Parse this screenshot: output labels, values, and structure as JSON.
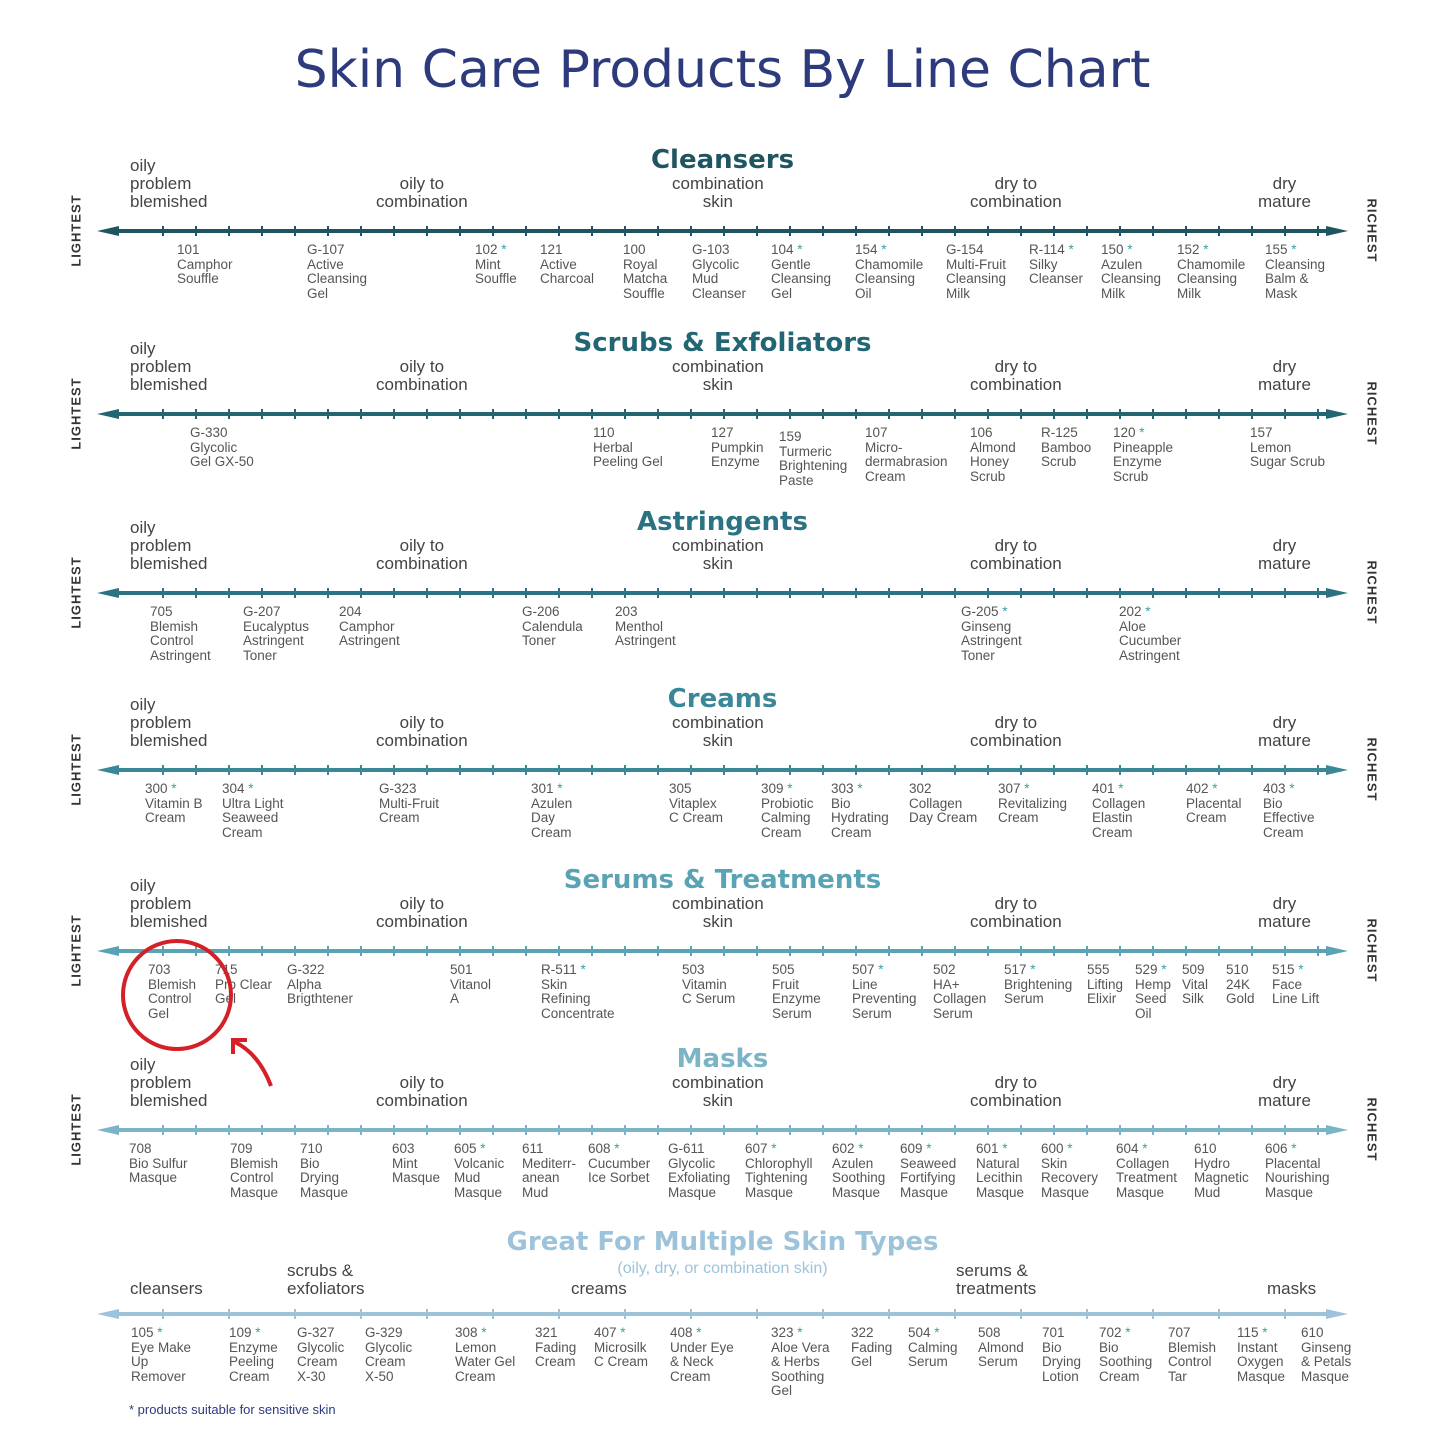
{
  "title": "Skin Care Products By Line Chart",
  "axis_left": "LIGHTEST",
  "axis_right": "RICHEST",
  "skin_labels": {
    "oily": "oily\nproblem\nblemished",
    "oily_combo": "oily to\ncombination",
    "combo": "combination\nskin",
    "dry_combo": "dry to\ncombination",
    "dry": "dry\nmature"
  },
  "sections": [
    {
      "title": "Cleansers",
      "color": "#1f5560",
      "products": [
        {
          "num": "101",
          "star": false,
          "name": "Camphor\nSouffle"
        },
        {
          "num": "G-107",
          "star": false,
          "name": "Active\nCleansing\nGel"
        },
        {
          "num": "102",
          "star": true,
          "name": "Mint\nSouffle"
        },
        {
          "num": "121",
          "star": false,
          "name": "Active\nCharcoal"
        },
        {
          "num": "100",
          "star": false,
          "name": "Royal\nMatcha\nSouffle"
        },
        {
          "num": "G-103",
          "star": false,
          "name": "Glycolic\nMud\nCleanser"
        },
        {
          "num": "104",
          "star": true,
          "name": "Gentle\nCleansing\nGel"
        },
        {
          "num": "154",
          "star": true,
          "name": "Chamomile\nCleansing\nOil"
        },
        {
          "num": "G-154",
          "star": false,
          "name": "Multi-Fruit\nCleansing\nMilk"
        },
        {
          "num": "R-114",
          "star": true,
          "name": "Silky\nCleanser"
        },
        {
          "num": "150",
          "star": true,
          "name": "Azulen\nCleansing\nMilk"
        },
        {
          "num": "152",
          "star": true,
          "name": "Chamomile\nCleansing\nMilk"
        },
        {
          "num": "155",
          "star": true,
          "name": "Cleansing\nBalm &\nMask"
        }
      ]
    },
    {
      "title": "Scrubs & Exfoliators",
      "color": "#236673",
      "products": [
        {
          "num": "G-330",
          "star": false,
          "name": "Glycolic\nGel GX-50"
        },
        {
          "num": "110",
          "star": false,
          "name": "Herbal\nPeeling Gel"
        },
        {
          "num": "127",
          "star": false,
          "name": "Pumpkin\nEnzyme"
        },
        {
          "num": "159",
          "star": false,
          "name": "Turmeric\nBrightening\nPaste"
        },
        {
          "num": "107",
          "star": false,
          "name": "Micro-\ndermabrasion\nCream"
        },
        {
          "num": "106",
          "star": false,
          "name": "Almond\nHoney\nScrub"
        },
        {
          "num": "R-125",
          "star": false,
          "name": "Bamboo\nScrub"
        },
        {
          "num": "120",
          "star": true,
          "name": "Pineapple\nEnzyme\nScrub"
        },
        {
          "num": "157",
          "star": false,
          "name": "Lemon\nSugar Scrub"
        }
      ]
    },
    {
      "title": "Astringents",
      "color": "#2b7383",
      "products": [
        {
          "num": "705",
          "star": false,
          "name": "Blemish\nControl\nAstringent"
        },
        {
          "num": "G-207",
          "star": false,
          "name": "Eucalyptus\nAstringent\nToner"
        },
        {
          "num": "204",
          "star": false,
          "name": "Camphor\nAstringent"
        },
        {
          "num": "G-206",
          "star": false,
          "name": "Calendula\nToner"
        },
        {
          "num": "203",
          "star": false,
          "name": "Menthol\nAstringent"
        },
        {
          "num": "G-205",
          "star": true,
          "name": "Ginseng\nAstringent\nToner"
        },
        {
          "num": "202",
          "star": true,
          "name": "Aloe\nCucumber\nAstringent"
        }
      ]
    },
    {
      "title": "Creams",
      "color": "#3a8797",
      "products": [
        {
          "num": "300",
          "star": true,
          "name": "Vitamin B\nCream"
        },
        {
          "num": "304",
          "star": true,
          "name": "Ultra Light\nSeaweed\nCream"
        },
        {
          "num": "G-323",
          "star": false,
          "name": "Multi-Fruit\nCream"
        },
        {
          "num": "301",
          "star": true,
          "name": "Azulen\nDay\nCream"
        },
        {
          "num": "305",
          "star": false,
          "name": "Vitaplex\nC Cream"
        },
        {
          "num": "309",
          "star": true,
          "name": "Probiotic\nCalming\nCream"
        },
        {
          "num": "303",
          "star": true,
          "name": "Bio\nHydrating\nCream"
        },
        {
          "num": "302",
          "star": false,
          "name": "Collagen\nDay Cream"
        },
        {
          "num": "307",
          "star": true,
          "name": "Revitalizing\nCream"
        },
        {
          "num": "401",
          "star": true,
          "name": "Collagen\nElastin\nCream"
        },
        {
          "num": "402",
          "star": true,
          "name": "Placental\nCream"
        },
        {
          "num": "403",
          "star": true,
          "name": "Bio\nEffective\nCream"
        }
      ]
    },
    {
      "title": "Serums & Treatments",
      "color": "#5aa3b4",
      "products": [
        {
          "num": "703",
          "star": false,
          "name": "Blemish\nControl\nGel"
        },
        {
          "num": "715",
          "star": false,
          "name": "Pro Clear\nGel"
        },
        {
          "num": "G-322",
          "star": false,
          "name": "Alpha\nBrigthtener"
        },
        {
          "num": "501",
          "star": false,
          "name": "Vitanol\nA"
        },
        {
          "num": "R-511",
          "star": true,
          "name": "Skin\nRefining\nConcentrate"
        },
        {
          "num": "503",
          "star": false,
          "name": "Vitamin\nC Serum"
        },
        {
          "num": "505",
          "star": false,
          "name": "Fruit\nEnzyme\nSerum"
        },
        {
          "num": "507",
          "star": true,
          "name": "Line\nPreventing\nSerum"
        },
        {
          "num": "502",
          "star": false,
          "name": "HA+\nCollagen\nSerum"
        },
        {
          "num": "517",
          "star": true,
          "name": "Brightening\nSerum"
        },
        {
          "num": "555",
          "star": false,
          "name": "Lifting\nElixir"
        },
        {
          "num": "529",
          "star": true,
          "name": "Hemp\nSeed\nOil"
        },
        {
          "num": "509",
          "star": false,
          "name": "Vital\nSilk"
        },
        {
          "num": "510",
          "star": false,
          "name": "24K\nGold"
        },
        {
          "num": "515",
          "star": true,
          "name": "Face\nLine Lift"
        }
      ]
    },
    {
      "title": "Masks",
      "color": "#7ab4c6",
      "products": [
        {
          "num": "708",
          "star": false,
          "name": "Bio Sulfur\nMasque"
        },
        {
          "num": "709",
          "star": false,
          "name": "Blemish\nControl\nMasque"
        },
        {
          "num": "710",
          "star": false,
          "name": "Bio\nDrying\nMasque"
        },
        {
          "num": "603",
          "star": false,
          "name": "Mint\nMasque"
        },
        {
          "num": "605",
          "star": true,
          "name": "Volcanic\nMud\nMasque"
        },
        {
          "num": "611",
          "star": false,
          "name": "Mediterr-\nanean\nMud"
        },
        {
          "num": "608",
          "star": true,
          "name": "Cucumber\nIce Sorbet"
        },
        {
          "num": "G-611",
          "star": false,
          "name": "Glycolic\nExfoliating\nMasque"
        },
        {
          "num": "607",
          "star": true,
          "name": "Chlorophyll\nTightening\nMasque"
        },
        {
          "num": "602",
          "star": true,
          "name": "Azulen\nSoothing\nMasque"
        },
        {
          "num": "609",
          "star": true,
          "name": "Seaweed\nFortifying\nMasque"
        },
        {
          "num": "601",
          "star": true,
          "name": "Natural\nLecithin\nMasque"
        },
        {
          "num": "600",
          "star": true,
          "name": "Skin\nRecovery\nMasque"
        },
        {
          "num": "604",
          "star": true,
          "name": "Collagen\nTreatment\nMasque"
        },
        {
          "num": "610",
          "star": false,
          "name": "Hydro\nMagnetic\nMud"
        },
        {
          "num": "606",
          "star": true,
          "name": "Placental\nNourishing\nMasque"
        }
      ]
    }
  ],
  "multi": {
    "title": "Great For Multiple Skin Types",
    "subtitle": "(oily, dry, or combination skin)",
    "color": "#9cc3d9",
    "labels": {
      "cleansers": "cleansers",
      "scrubs": "scrubs &\nexfoliators",
      "creams": "creams",
      "serums": "serums &\ntreatments",
      "masks": "masks"
    },
    "products": [
      {
        "num": "105",
        "star": true,
        "name": "Eye Make\nUp\nRemover"
      },
      {
        "num": "109",
        "star": true,
        "name": "Enzyme\nPeeling\nCream"
      },
      {
        "num": "G-327",
        "star": false,
        "name": "Glycolic\nCream\nX-30"
      },
      {
        "num": "G-329",
        "star": false,
        "name": "Glycolic\nCream\nX-50"
      },
      {
        "num": "308",
        "star": true,
        "name": "Lemon\nWater Gel\nCream"
      },
      {
        "num": "321",
        "star": false,
        "name": "Fading\nCream"
      },
      {
        "num": "407",
        "star": true,
        "name": "Microsilk\nC Cream"
      },
      {
        "num": "408",
        "star": true,
        "name": "Under Eye\n& Neck\nCream"
      },
      {
        "num": "323",
        "star": true,
        "name": "Aloe Vera\n& Herbs\nSoothing\nGel"
      },
      {
        "num": "322",
        "star": false,
        "name": "Fading\nGel"
      },
      {
        "num": "504",
        "star": true,
        "name": "Calming\nSerum"
      },
      {
        "num": "508",
        "star": false,
        "name": "Almond\nSerum"
      },
      {
        "num": "701",
        "star": false,
        "name": "Bio\nDrying\nLotion"
      },
      {
        "num": "702",
        "star": true,
        "name": "Bio\nSoothing\nCream"
      },
      {
        "num": "707",
        "star": false,
        "name": "Blemish\nControl\nTar"
      },
      {
        "num": "115",
        "star": true,
        "name": "Instant\nOxygen\nMasque"
      },
      {
        "num": "610",
        "star": false,
        "name": "Ginseng\n& Petals\nMasque"
      }
    ]
  },
  "note": "* products suitable for sensitive skin"
}
